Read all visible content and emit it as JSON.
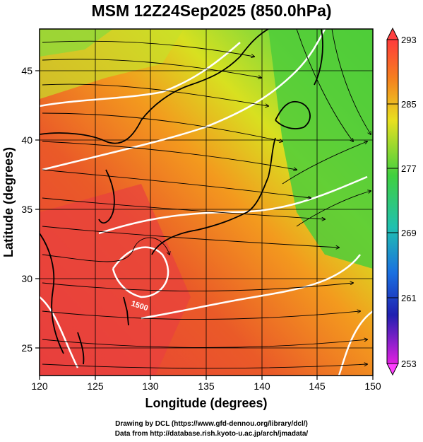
{
  "title": "MSM 12Z24Sep2025 (850.0hPa)",
  "x_axis": {
    "label": "Longitude (degrees)",
    "ticks": [
      "120",
      "125",
      "130",
      "135",
      "140",
      "145",
      "150"
    ],
    "range": [
      120,
      150
    ]
  },
  "y_axis": {
    "label": "Latitude (degrees)",
    "ticks": [
      "25",
      "30",
      "35",
      "40",
      "45"
    ],
    "range": [
      22.5,
      47.5
    ]
  },
  "colorbar": {
    "ticks": [
      "293",
      "285",
      "277",
      "269",
      "261",
      "253"
    ],
    "min": 253,
    "max": 293
  },
  "contour_label": "1500",
  "credits": {
    "line1": "Drawing by DCL (https://www.gfd-dennou.org/library/dcl/)",
    "line2": "Data from http://database.rish.kyoto-u.ac.jp/arch/jmadata/"
  },
  "colors": {
    "warm": "#e8442a",
    "hot": "#e8404a",
    "orange": "#f08a20",
    "yellow": "#e6e020",
    "green": "#5ad23a",
    "contour": "#ffffff",
    "coast": "#000000"
  }
}
